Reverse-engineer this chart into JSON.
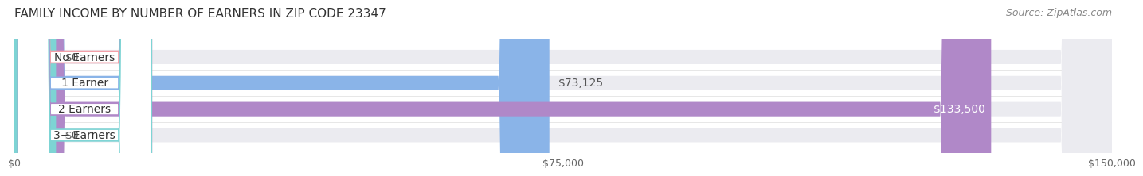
{
  "title": "FAMILY INCOME BY NUMBER OF EARNERS IN ZIP CODE 23347",
  "source": "Source: ZipAtlas.com",
  "categories": [
    "No Earners",
    "1 Earner",
    "2 Earners",
    "3+ Earners"
  ],
  "values": [
    0,
    73125,
    133500,
    0
  ],
  "max_value": 150000,
  "bar_colors": [
    "#f4a0a8",
    "#8ab4e8",
    "#b088c8",
    "#7dd4d4"
  ],
  "bar_bg_color": "#ebebf0",
  "label_colors": [
    "#f4a0a8",
    "#8ab4e8",
    "#b088c8",
    "#7dd4d4"
  ],
  "value_labels": [
    "$0",
    "$73,125",
    "$133,500",
    "$0"
  ],
  "value_label_colors": [
    "#555555",
    "#555555",
    "#ffffff",
    "#555555"
  ],
  "x_ticks": [
    0,
    75000,
    150000
  ],
  "x_tick_labels": [
    "$0",
    "$75,000",
    "$150,000"
  ],
  "title_fontsize": 11,
  "source_fontsize": 9,
  "bar_label_fontsize": 10,
  "value_label_fontsize": 10,
  "x_tick_fontsize": 9,
  "fig_bg_color": "#ffffff",
  "bar_height": 0.55
}
